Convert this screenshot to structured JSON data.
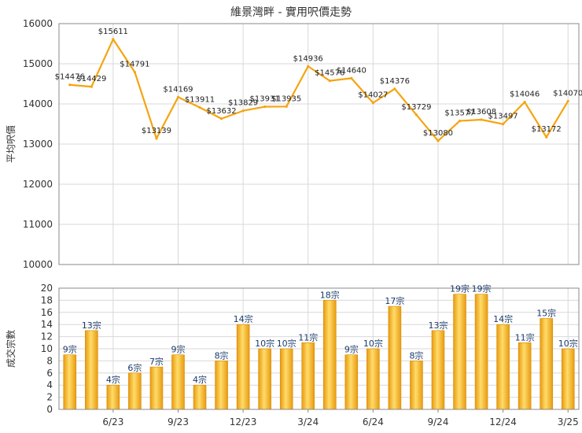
{
  "page": {
    "title": "維景灣畔 - 實用呎價走勢"
  },
  "colors": {
    "line": "#f5a40f",
    "bar_light": "#ffd860",
    "bar_dark": "#e89a10",
    "grid": "#d8d8d8"
  },
  "chart_data": [
    {
      "type": "line",
      "title": "維景灣畔 - 實用呎價走勢",
      "ylabel": "平均呎價",
      "ylim": [
        10000,
        16000
      ],
      "yticks": [
        10000,
        11000,
        12000,
        13000,
        14000,
        15000,
        16000
      ],
      "ytick_labels": [
        "10000",
        "11000",
        "12000",
        "13000",
        "14000",
        "15000",
        "16000"
      ],
      "grid": true,
      "series": [
        {
          "values": [
            14476,
            14429,
            15611,
            14791,
            13139,
            14169,
            13911,
            13632,
            13829,
            13931,
            13935,
            14936,
            14576,
            14640,
            14027,
            14376,
            13729,
            13080,
            13577,
            13608,
            13497,
            14046,
            13172,
            14070
          ],
          "labels": [
            "$14476",
            "$14429",
            "$15611",
            "$14791",
            "$13139",
            "$14169",
            "$13911",
            "$13632",
            "$13829",
            "$13931",
            "$13935",
            "$14936",
            "$14576",
            "$14640",
            "$14027",
            "$14376",
            "$13729",
            "$13080",
            "$13577",
            "$13608",
            "$13497",
            "$14046",
            "$13172",
            "$14070"
          ]
        }
      ]
    },
    {
      "type": "bar",
      "ylabel": "成交宗數",
      "ylim": [
        0,
        20
      ],
      "yticks": [
        0,
        2,
        4,
        6,
        8,
        10,
        12,
        14,
        16,
        18,
        20
      ],
      "ytick_labels": [
        "0",
        "2",
        "4",
        "6",
        "8",
        "10",
        "12",
        "14",
        "16",
        "18",
        "20"
      ],
      "grid": true,
      "x_tick_labels": [
        {
          "index": 2,
          "label": "6/23"
        },
        {
          "index": 5,
          "label": "9/23"
        },
        {
          "index": 8,
          "label": "12/23"
        },
        {
          "index": 11,
          "label": "3/24"
        },
        {
          "index": 14,
          "label": "6/24"
        },
        {
          "index": 17,
          "label": "9/24"
        },
        {
          "index": 20,
          "label": "12/24"
        },
        {
          "index": 23,
          "label": "3/25"
        }
      ],
      "series": [
        {
          "values": [
            9,
            13,
            4,
            6,
            7,
            9,
            4,
            8,
            14,
            10,
            10,
            11,
            18,
            9,
            10,
            17,
            8,
            13,
            19,
            19,
            14,
            11,
            15,
            10
          ],
          "labels": [
            "9宗",
            "13宗",
            "4宗",
            "6宗",
            "7宗",
            "9宗",
            "4宗",
            "8宗",
            "14宗",
            "10宗",
            "10宗",
            "11宗",
            "18宗",
            "9宗",
            "10宗",
            "17宗",
            "8宗",
            "13宗",
            "19宗",
            "19宗",
            "14宗",
            "11宗",
            "15宗",
            "10宗"
          ]
        }
      ]
    }
  ]
}
